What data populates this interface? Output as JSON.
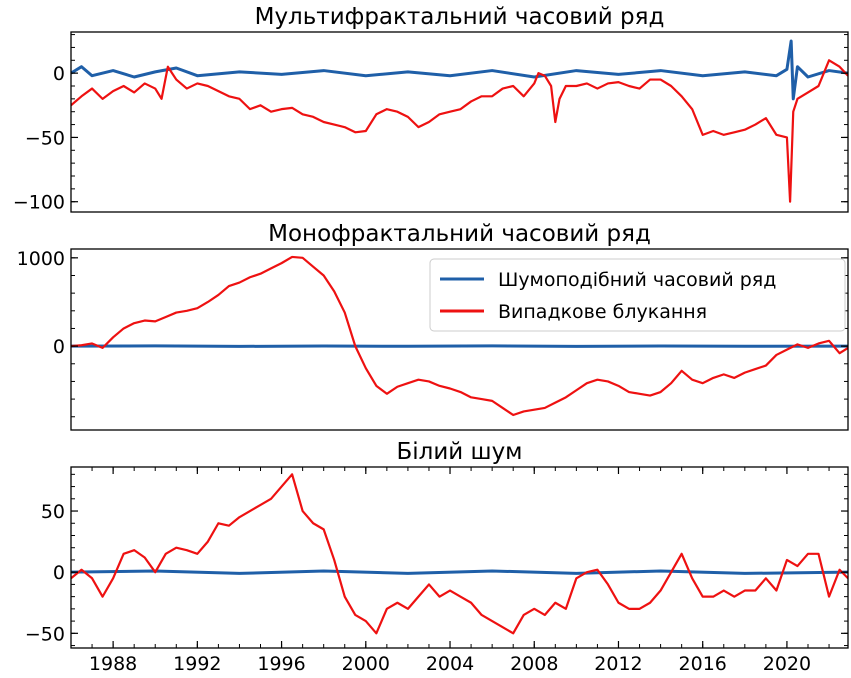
{
  "chart_data": [
    {
      "type": "line",
      "title": "Мультифрактальний часовий ряд",
      "xlabel": "",
      "ylabel": "",
      "xlim": [
        1986.0,
        2022.9
      ],
      "ylim": [
        -108,
        32
      ],
      "yticks": [
        0,
        -50,
        -100
      ],
      "ytick_labels": [
        "0",
        "−50",
        "−100"
      ],
      "show_x_tick_labels": false,
      "series": [
        {
          "color": "#1f5fa8",
          "x": [
            1986,
            1986.5,
            1987,
            1988,
            1989,
            1990,
            1991,
            1992,
            1994,
            1996,
            1998,
            2000,
            2002,
            2004,
            2006,
            2008,
            2010,
            2012,
            2014,
            2016,
            2018,
            2019.5,
            2020.0,
            2020.2,
            2020.3,
            2020.5,
            2021,
            2022,
            2022.9
          ],
          "y": [
            0,
            5,
            -2,
            2,
            -3,
            1,
            4,
            -2,
            1,
            -1,
            2,
            -2,
            1,
            -2,
            2,
            -3,
            2,
            -1,
            2,
            -2,
            1,
            -2,
            3,
            25,
            -20,
            5,
            -3,
            2,
            0
          ]
        },
        {
          "color": "#ee1111",
          "x": [
            1986.0,
            1986.5,
            1987.0,
            1987.5,
            1988.0,
            1988.5,
            1989.0,
            1989.5,
            1990.0,
            1990.3,
            1990.6,
            1991.0,
            1991.5,
            1992.0,
            1992.5,
            1993.0,
            1993.5,
            1994.0,
            1994.5,
            1995.0,
            1995.5,
            1996.0,
            1996.5,
            1997.0,
            1997.5,
            1998.0,
            1998.5,
            1999.0,
            1999.5,
            2000.0,
            2000.5,
            2001.0,
            2001.5,
            2002.0,
            2002.5,
            2003.0,
            2003.5,
            2004.0,
            2004.5,
            2005.0,
            2005.5,
            2006.0,
            2006.5,
            2007.0,
            2007.5,
            2008.0,
            2008.2,
            2008.5,
            2008.8,
            2009.0,
            2009.2,
            2009.5,
            2010.0,
            2010.5,
            2011.0,
            2011.5,
            2012.0,
            2012.5,
            2013.0,
            2013.5,
            2014.0,
            2014.5,
            2015.0,
            2015.5,
            2016.0,
            2016.5,
            2017.0,
            2017.5,
            2018.0,
            2018.5,
            2019.0,
            2019.5,
            2020.0,
            2020.15,
            2020.3,
            2020.5,
            2021.0,
            2021.5,
            2022.0,
            2022.5,
            2022.9
          ],
          "y": [
            -25,
            -18,
            -12,
            -20,
            -14,
            -10,
            -15,
            -8,
            -12,
            -20,
            5,
            -5,
            -12,
            -8,
            -10,
            -14,
            -18,
            -20,
            -28,
            -25,
            -30,
            -28,
            -27,
            -32,
            -34,
            -38,
            -40,
            -42,
            -46,
            -45,
            -32,
            -28,
            -30,
            -34,
            -42,
            -38,
            -32,
            -30,
            -28,
            -22,
            -18,
            -18,
            -12,
            -10,
            -18,
            -8,
            0,
            -2,
            -10,
            -38,
            -20,
            -10,
            -10,
            -8,
            -12,
            -8,
            -7,
            -10,
            -12,
            -5,
            -5,
            -10,
            -18,
            -28,
            -48,
            -45,
            -48,
            -46,
            -44,
            -40,
            -35,
            -48,
            -50,
            -100,
            -30,
            -20,
            -15,
            -10,
            10,
            5,
            -2
          ]
        }
      ]
    },
    {
      "type": "line",
      "title": "Монофрактальний часовий ряд",
      "xlabel": "",
      "ylabel": "",
      "xlim": [
        1986.0,
        2022.9
      ],
      "ylim": [
        -950,
        1100
      ],
      "yticks": [
        1000,
        0
      ],
      "ytick_labels": [
        "1000",
        "0"
      ],
      "show_x_tick_labels": false,
      "legend": {
        "position": "upper-right",
        "entries": [
          {
            "label": "Шумоподібний часовий ряд",
            "color": "#1f5fa8"
          },
          {
            "label": "Випадкове блукання",
            "color": "#ee1111"
          }
        ]
      },
      "series": [
        {
          "name": "Шумоподібний часовий ряд",
          "color": "#1f5fa8",
          "x": [
            1986,
            1990,
            1994,
            1998,
            2002,
            2006,
            2010,
            2014,
            2018,
            2022.9
          ],
          "y": [
            0,
            3,
            -3,
            2,
            -2,
            3,
            -3,
            2,
            -2,
            0
          ]
        },
        {
          "name": "Випадкове блукання",
          "color": "#ee1111",
          "x": [
            1986.0,
            1986.5,
            1987.0,
            1987.5,
            1988.0,
            1988.5,
            1989.0,
            1989.5,
            1990.0,
            1990.5,
            1991.0,
            1991.5,
            1992.0,
            1992.5,
            1993.0,
            1993.5,
            1994.0,
            1994.5,
            1995.0,
            1995.5,
            1996.0,
            1996.5,
            1997.0,
            1997.5,
            1998.0,
            1998.5,
            1999.0,
            1999.5,
            2000.0,
            2000.5,
            2001.0,
            2001.5,
            2002.0,
            2002.5,
            2003.0,
            2003.5,
            2004.0,
            2004.5,
            2005.0,
            2005.5,
            2006.0,
            2006.5,
            2007.0,
            2007.5,
            2008.0,
            2008.5,
            2009.0,
            2009.5,
            2010.0,
            2010.5,
            2011.0,
            2011.5,
            2012.0,
            2012.5,
            2013.0,
            2013.5,
            2014.0,
            2014.5,
            2015.0,
            2015.5,
            2016.0,
            2016.5,
            2017.0,
            2017.5,
            2018.0,
            2018.5,
            2019.0,
            2019.5,
            2020.0,
            2020.5,
            2021.0,
            2021.5,
            2022.0,
            2022.5,
            2022.9
          ],
          "y": [
            0,
            10,
            30,
            -20,
            100,
            200,
            260,
            290,
            280,
            330,
            380,
            400,
            430,
            500,
            580,
            680,
            720,
            780,
            820,
            880,
            940,
            1010,
            1000,
            900,
            800,
            620,
            380,
            0,
            -250,
            -450,
            -540,
            -460,
            -420,
            -380,
            -400,
            -450,
            -480,
            -520,
            -580,
            -600,
            -620,
            -700,
            -780,
            -740,
            -720,
            -700,
            -640,
            -580,
            -500,
            -420,
            -380,
            -400,
            -450,
            -520,
            -540,
            -560,
            -520,
            -420,
            -280,
            -380,
            -420,
            -360,
            -320,
            -360,
            -300,
            -260,
            -220,
            -100,
            -40,
            20,
            -20,
            30,
            60,
            -80,
            -20
          ]
        }
      ]
    },
    {
      "type": "line",
      "title": "Білий шум",
      "xlabel": "",
      "ylabel": "",
      "xlim": [
        1986.0,
        2022.9
      ],
      "ylim": [
        -62,
        86
      ],
      "yticks": [
        50,
        0,
        -50
      ],
      "ytick_labels": [
        "50",
        "0",
        "−50"
      ],
      "xticks": [
        1988,
        1992,
        1996,
        2000,
        2004,
        2008,
        2012,
        2016,
        2020
      ],
      "xtick_labels": [
        "1988",
        "1992",
        "1996",
        "2000",
        "2004",
        "2008",
        "2012",
        "2016",
        "2020"
      ],
      "show_x_tick_labels": true,
      "series": [
        {
          "color": "#1f5fa8",
          "x": [
            1986,
            1990,
            1994,
            1998,
            2002,
            2006,
            2010,
            2014,
            2018,
            2022.9
          ],
          "y": [
            0,
            1,
            -1,
            1,
            -1,
            1,
            -1,
            1,
            -1,
            0
          ]
        },
        {
          "color": "#ee1111",
          "x": [
            1986.0,
            1986.5,
            1987.0,
            1987.5,
            1988.0,
            1988.5,
            1989.0,
            1989.5,
            1990.0,
            1990.5,
            1991.0,
            1991.5,
            1992.0,
            1992.5,
            1993.0,
            1993.5,
            1994.0,
            1994.5,
            1995.0,
            1995.5,
            1996.0,
            1996.5,
            1997.0,
            1997.5,
            1998.0,
            1998.5,
            1999.0,
            1999.5,
            2000.0,
            2000.5,
            2001.0,
            2001.5,
            2002.0,
            2002.5,
            2003.0,
            2003.5,
            2004.0,
            2004.5,
            2005.0,
            2005.5,
            2006.0,
            2006.5,
            2007.0,
            2007.5,
            2008.0,
            2008.5,
            2009.0,
            2009.5,
            2010.0,
            2010.5,
            2011.0,
            2011.5,
            2012.0,
            2012.5,
            2013.0,
            2013.5,
            2014.0,
            2014.5,
            2015.0,
            2015.5,
            2016.0,
            2016.5,
            2017.0,
            2017.5,
            2018.0,
            2018.5,
            2019.0,
            2019.5,
            2020.0,
            2020.5,
            2021.0,
            2021.5,
            2022.0,
            2022.5,
            2022.9
          ],
          "y": [
            -5,
            2,
            -5,
            -20,
            -5,
            15,
            18,
            12,
            0,
            15,
            20,
            18,
            15,
            25,
            40,
            38,
            45,
            50,
            55,
            60,
            70,
            80,
            50,
            40,
            35,
            10,
            -20,
            -35,
            -40,
            -50,
            -30,
            -25,
            -30,
            -20,
            -10,
            -20,
            -15,
            -20,
            -25,
            -35,
            -40,
            -45,
            -50,
            -35,
            -30,
            -35,
            -25,
            -30,
            -5,
            0,
            2,
            -10,
            -25,
            -30,
            -30,
            -25,
            -15,
            0,
            15,
            -5,
            -20,
            -20,
            -15,
            -20,
            -15,
            -15,
            -5,
            -15,
            10,
            5,
            15,
            15,
            -20,
            2,
            -5
          ]
        }
      ]
    }
  ]
}
